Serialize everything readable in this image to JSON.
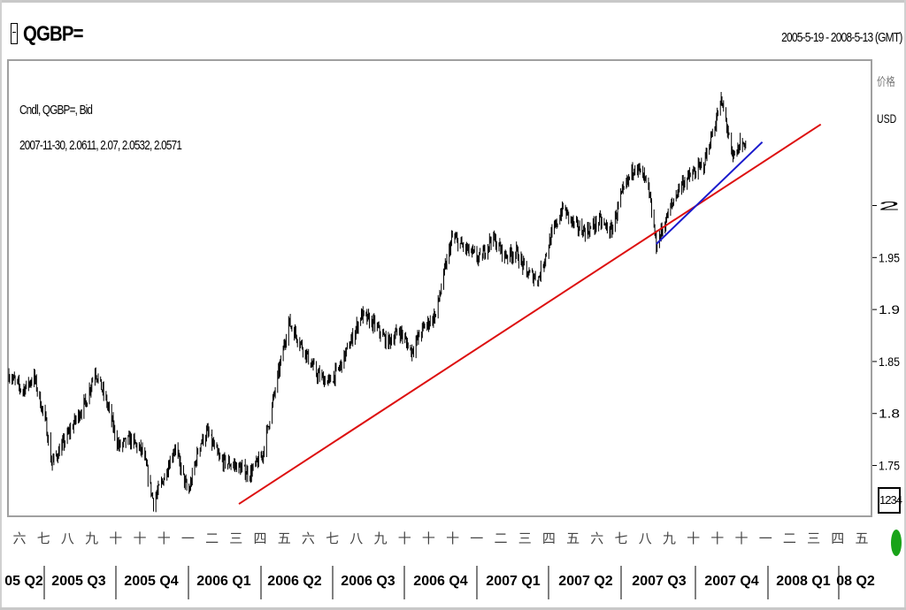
{
  "header": {
    "symbol": "QGBP=",
    "date_range": "2005-5-19 - 2008-5-13 (GMT)"
  },
  "info": {
    "line1": "Cndl, QGBP=, Bid",
    "line2": "2007-11-30, 2.0611, 2.07, 2.0532, 2.0571"
  },
  "axis": {
    "price_label": "价格",
    "currency": "USD",
    "value_box": "1234"
  },
  "colors": {
    "price_series": "#000000",
    "trendline_long": "#dd1010",
    "trendline_short": "#1a1acc",
    "plot_border": "#a0a0a0",
    "scroll_knob": "#19a319"
  },
  "chart_data": {
    "type": "candlestick",
    "title": "QGBP=",
    "instrument": "Cndl, QGBP=, Bid",
    "xlabel": "",
    "ylabel": "价格 USD",
    "ylim": [
      1.702,
      2.139
    ],
    "y_ticks": [
      2,
      1.95,
      1.9,
      1.85,
      1.8,
      1.75
    ],
    "grid": false,
    "x_range": [
      "2005-05-19",
      "2008-05-13"
    ],
    "month_labels": [
      "六",
      "七",
      "八",
      "九",
      "十",
      "十",
      "十",
      "一",
      "二",
      "三",
      "四",
      "五",
      "六",
      "七",
      "八",
      "九",
      "十",
      "十",
      "十",
      "一",
      "二",
      "三",
      "四",
      "五",
      "六",
      "七",
      "八",
      "九",
      "十",
      "十",
      "十",
      "一",
      "二",
      "三",
      "四",
      "五"
    ],
    "quarter_labels": [
      "05 Q2",
      "2005 Q3",
      "2005 Q4",
      "2006 Q1",
      "2006 Q2",
      "2006 Q3",
      "2006 Q4",
      "2007 Q1",
      "2007 Q2",
      "2007 Q3",
      "2007 Q4",
      "2008 Q1",
      "08 Q2"
    ],
    "last_bar": {
      "date": "2007-11-30",
      "open": 2.0611,
      "high": 2.07,
      "low": 2.0532,
      "close": 2.0571
    },
    "price_path": [
      [
        "2005-05-19",
        1.838
      ],
      [
        "2005-06-05",
        1.822
      ],
      [
        "2005-06-20",
        1.835
      ],
      [
        "2005-07-05",
        1.79
      ],
      [
        "2005-07-12",
        1.752
      ],
      [
        "2005-07-25",
        1.768
      ],
      [
        "2005-08-10",
        1.792
      ],
      [
        "2005-08-25",
        1.812
      ],
      [
        "2005-09-05",
        1.842
      ],
      [
        "2005-09-20",
        1.81
      ],
      [
        "2005-10-05",
        1.768
      ],
      [
        "2005-10-20",
        1.775
      ],
      [
        "2005-11-05",
        1.762
      ],
      [
        "2005-11-18",
        1.715
      ],
      [
        "2005-12-01",
        1.738
      ],
      [
        "2005-12-15",
        1.768
      ],
      [
        "2006-01-01",
        1.722
      ],
      [
        "2006-01-15",
        1.77
      ],
      [
        "2006-01-25",
        1.782
      ],
      [
        "2006-02-10",
        1.755
      ],
      [
        "2006-03-01",
        1.75
      ],
      [
        "2006-03-20",
        1.742
      ],
      [
        "2006-04-05",
        1.76
      ],
      [
        "2006-04-15",
        1.8
      ],
      [
        "2006-04-28",
        1.85
      ],
      [
        "2006-05-08",
        1.888
      ],
      [
        "2006-05-25",
        1.865
      ],
      [
        "2006-06-12",
        1.838
      ],
      [
        "2006-06-28",
        1.83
      ],
      [
        "2006-07-10",
        1.842
      ],
      [
        "2006-07-25",
        1.868
      ],
      [
        "2006-08-08",
        1.895
      ],
      [
        "2006-08-25",
        1.885
      ],
      [
        "2006-09-10",
        1.868
      ],
      [
        "2006-09-25",
        1.88
      ],
      [
        "2006-10-10",
        1.86
      ],
      [
        "2006-10-25",
        1.882
      ],
      [
        "2006-11-10",
        1.895
      ],
      [
        "2006-11-22",
        1.94
      ],
      [
        "2006-12-01",
        1.97
      ],
      [
        "2006-12-15",
        1.96
      ],
      [
        "2007-01-05",
        1.948
      ],
      [
        "2007-01-20",
        1.97
      ],
      [
        "2007-02-05",
        1.952
      ],
      [
        "2007-02-20",
        1.955
      ],
      [
        "2007-03-05",
        1.935
      ],
      [
        "2007-03-20",
        1.93
      ],
      [
        "2007-04-05",
        1.97
      ],
      [
        "2007-04-20",
        1.998
      ],
      [
        "2007-05-05",
        1.98
      ],
      [
        "2007-05-20",
        1.975
      ],
      [
        "2007-06-05",
        1.985
      ],
      [
        "2007-06-20",
        1.975
      ],
      [
        "2007-07-01",
        2.005
      ],
      [
        "2007-07-20",
        2.04
      ],
      [
        "2007-08-05",
        2.02
      ],
      [
        "2007-08-16",
        1.962
      ],
      [
        "2007-08-30",
        1.99
      ],
      [
        "2007-09-15",
        2.02
      ],
      [
        "2007-10-01",
        2.03
      ],
      [
        "2007-10-15",
        2.04
      ],
      [
        "2007-10-28",
        2.075
      ],
      [
        "2007-11-06",
        2.1
      ],
      [
        "2007-11-12",
        2.082
      ],
      [
        "2007-11-20",
        2.045
      ],
      [
        "2007-11-30",
        2.057
      ],
      [
        "2007-12-08",
        2.062
      ]
    ],
    "trendlines": [
      {
        "color": "red",
        "start": [
          "2006-03-06",
          1.713
        ],
        "end": [
          "2008-03-11",
          2.078
        ]
      },
      {
        "color": "blue",
        "start": [
          "2007-08-16",
          1.963
        ],
        "end": [
          "2007-12-28",
          2.061
        ]
      }
    ]
  }
}
